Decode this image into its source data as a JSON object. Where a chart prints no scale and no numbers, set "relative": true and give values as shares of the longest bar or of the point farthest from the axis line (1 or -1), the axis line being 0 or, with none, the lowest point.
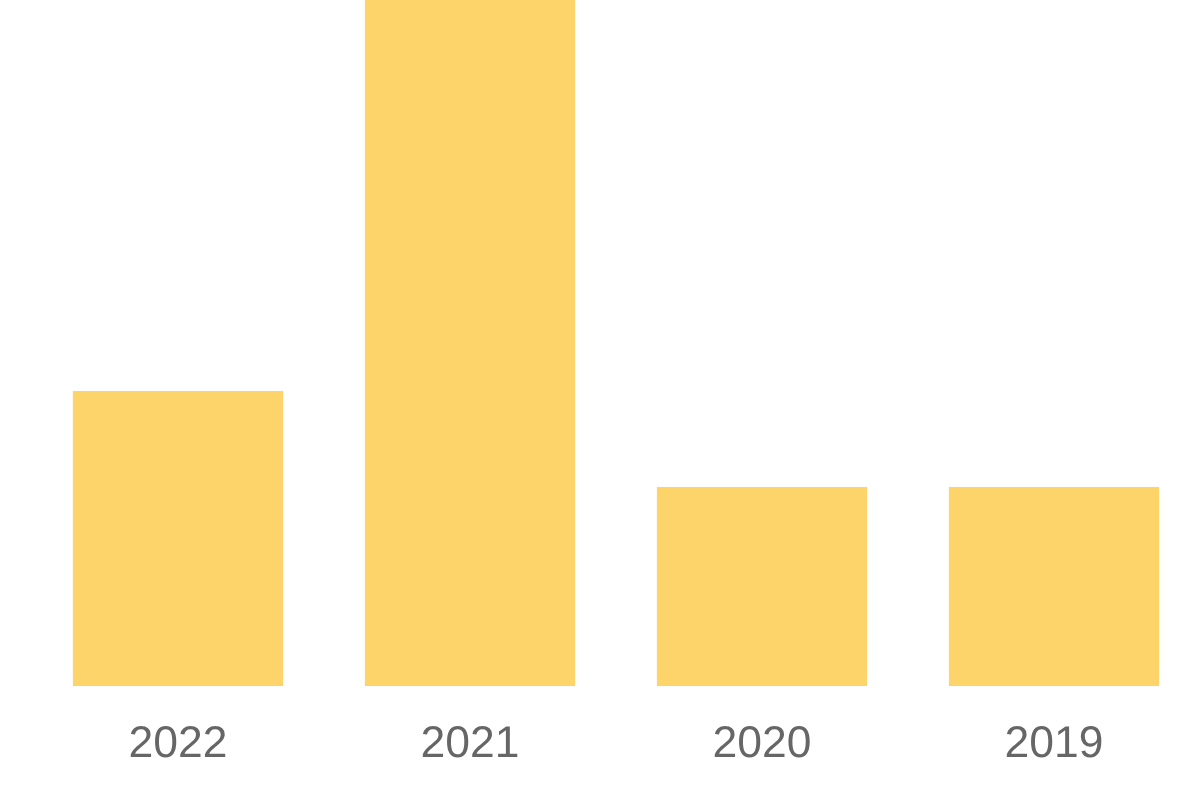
{
  "chart_data": {
    "type": "bar",
    "relative": true,
    "categories": [
      "2022",
      "2021",
      "2020",
      "2019"
    ],
    "values": [
      0.43,
      1,
      0.29,
      0.29
    ],
    "color": "#fdd46a",
    "grid": false,
    "legend": false
  }
}
